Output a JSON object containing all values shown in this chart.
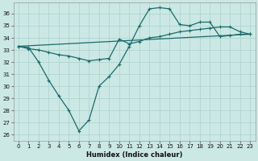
{
  "xlabel": "Humidex (Indice chaleur)",
  "background_color": "#cbe8e4",
  "grid_color": "#b0d4d0",
  "line_color": "#1a6b6b",
  "xlim": [
    -0.5,
    23.5
  ],
  "ylim": [
    25.5,
    36.9
  ],
  "yticks": [
    26,
    27,
    28,
    29,
    30,
    31,
    32,
    33,
    34,
    35,
    36
  ],
  "xticks": [
    0,
    1,
    2,
    3,
    4,
    5,
    6,
    7,
    8,
    9,
    10,
    11,
    12,
    13,
    14,
    15,
    16,
    17,
    18,
    19,
    20,
    21,
    22,
    23
  ],
  "line1_x": [
    0,
    1,
    2,
    3,
    4,
    5,
    6,
    7,
    8,
    9,
    10,
    11,
    12,
    13,
    14,
    15,
    16,
    17,
    18,
    19,
    20,
    21,
    22,
    23
  ],
  "line1_y": [
    33.3,
    33.2,
    32.0,
    30.5,
    29.2,
    28.0,
    26.3,
    27.2,
    30.0,
    30.8,
    31.8,
    33.3,
    35.0,
    36.4,
    36.5,
    36.4,
    35.1,
    35.0,
    35.3,
    35.3,
    34.1,
    34.2,
    34.3,
    34.3
  ],
  "line2_x": [
    0,
    1,
    2,
    3,
    4,
    5,
    6,
    7,
    8,
    9,
    10,
    11,
    12,
    13,
    14,
    15,
    16,
    17,
    18,
    19,
    20,
    21,
    22,
    23
  ],
  "line2_y": [
    33.3,
    33.1,
    33.0,
    32.8,
    32.6,
    32.5,
    32.3,
    32.1,
    32.2,
    32.3,
    33.9,
    33.5,
    33.7,
    34.0,
    34.1,
    34.3,
    34.5,
    34.6,
    34.7,
    34.8,
    34.9,
    34.9,
    34.5,
    34.3
  ],
  "line3_x": [
    0,
    23
  ],
  "line3_y": [
    33.3,
    34.3
  ]
}
